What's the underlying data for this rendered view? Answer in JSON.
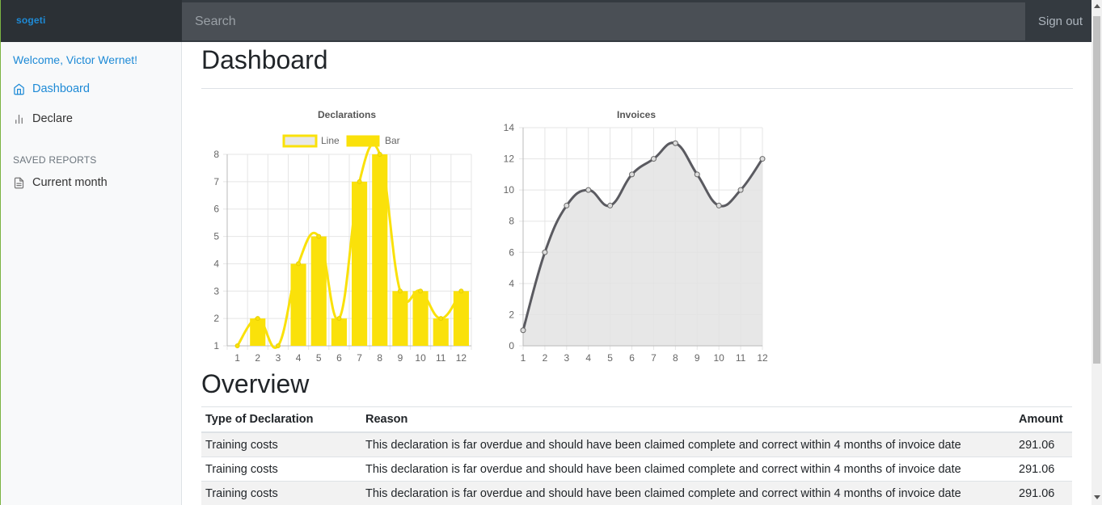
{
  "header": {
    "brand": "sogeti",
    "search_placeholder": "Search",
    "signout_label": "Sign out"
  },
  "sidebar": {
    "welcome": "Welcome, Victor Wernet!",
    "items": [
      {
        "label": "Dashboard",
        "icon": "home-icon",
        "active": true
      },
      {
        "label": "Declare",
        "icon": "bar-chart-icon",
        "active": false
      }
    ],
    "saved_reports_heading": "SAVED REPORTS",
    "reports": [
      {
        "label": "Current month",
        "icon": "file-text-icon"
      }
    ]
  },
  "main": {
    "title": "Dashboard",
    "overview_title": "Overview"
  },
  "colors": {
    "accent": "#1e8ad6",
    "yellow": "#fae10a",
    "invoice_line": "#5a5a60",
    "invoice_fill": "#e3e3e3"
  },
  "chart_data": [
    {
      "type": "bar",
      "title": "Declarations",
      "categories": [
        "1",
        "2",
        "3",
        "4",
        "5",
        "6",
        "7",
        "8",
        "9",
        "10",
        "11",
        "12"
      ],
      "series": [
        {
          "name": "Line",
          "type": "line",
          "values": [
            1,
            2,
            1,
            4,
            5,
            2,
            7,
            8,
            3,
            3,
            2,
            3
          ]
        },
        {
          "name": "Bar",
          "type": "bar",
          "values": [
            1,
            2,
            1,
            4,
            5,
            2,
            7,
            8,
            3,
            3,
            2,
            3
          ]
        }
      ],
      "ylim": [
        1,
        8
      ],
      "yticks": [
        1,
        2,
        3,
        4,
        5,
        6,
        7,
        8
      ],
      "legend": "top",
      "grid": true
    },
    {
      "type": "area",
      "title": "Invoices",
      "categories": [
        "1",
        "2",
        "3",
        "4",
        "5",
        "6",
        "7",
        "8",
        "9",
        "10",
        "11",
        "12"
      ],
      "values": [
        1,
        6,
        9,
        10,
        9,
        11,
        12,
        13,
        11,
        9,
        10,
        12
      ],
      "ylim": [
        0,
        14
      ],
      "yticks": [
        0,
        2,
        4,
        6,
        8,
        10,
        12,
        14
      ],
      "legend": "none",
      "grid": true
    }
  ],
  "table": {
    "columns": [
      "Type of Declaration",
      "Reason",
      "Amount"
    ],
    "rows": [
      [
        "Training costs",
        "This declaration is far overdue and should have been claimed complete and correct within 4 months of invoice date",
        "291.06"
      ],
      [
        "Training costs",
        "This declaration is far overdue and should have been claimed complete and correct within 4 months of invoice date",
        "291.06"
      ],
      [
        "Training costs",
        "This declaration is far overdue and should have been claimed complete and correct within 4 months of invoice date",
        "291.06"
      ]
    ]
  }
}
